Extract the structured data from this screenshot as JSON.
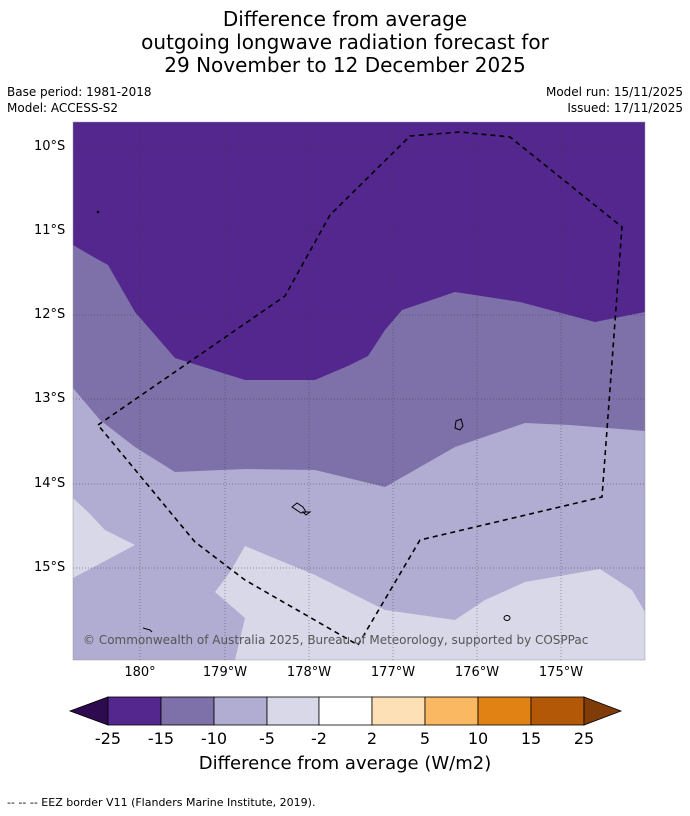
{
  "title": {
    "line1": "Difference from average",
    "line2": "outgoing longwave radiation forecast for",
    "line3": "29 November to 12 December 2025"
  },
  "meta": {
    "base_period": "Base period: 1981-2018",
    "model": "Model: ACCESS-S2",
    "model_run": "Model run: 15/11/2025",
    "issued": "Issued: 17/11/2025"
  },
  "map": {
    "lat_labels": [
      "10°S",
      "11°S",
      "12°S",
      "13°S",
      "14°S",
      "15°S"
    ],
    "lon_labels": [
      "180°",
      "179°W",
      "178°W",
      "177°W",
      "176°W",
      "175°W"
    ],
    "copyright": "© Commonwealth of Australia 2025, Bureau of Meteorology, supported by COSPPac"
  },
  "colorbar": {
    "ticks": [
      "-25",
      "-15",
      "-10",
      "-5",
      "-2",
      "2",
      "5",
      "10",
      "15",
      "25"
    ],
    "colors": [
      "#2e0a4f",
      "#54278f",
      "#7e71a9",
      "#b1acd1",
      "#d8d8e8",
      "#ffffff",
      "#fde0b6",
      "#fbb862",
      "#e08214",
      "#b35806",
      "#7f3b08"
    ],
    "title": "Difference from average (W/m2)"
  },
  "footer": "--  --  -- EEZ border V11 (Flanders Marine Institute, 2019)."
}
